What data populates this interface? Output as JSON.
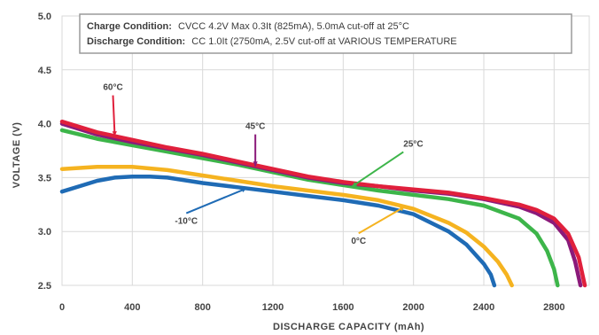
{
  "chart_data": {
    "type": "line",
    "title": "",
    "xlabel": "DISCHARGE CAPACITY (mAh)",
    "ylabel": "VOLTAGE (V)",
    "xlim": [
      0,
      3000
    ],
    "ylim": [
      2.5,
      5.0
    ],
    "x_ticks": [
      "0",
      "400",
      "800",
      "1200",
      "1600",
      "2000",
      "2400",
      "2800"
    ],
    "x_tick_values": [
      0,
      400,
      800,
      1200,
      1600,
      2000,
      2400,
      2800
    ],
    "y_ticks": [
      "2.5",
      "3.0",
      "3.5",
      "4.0",
      "4.5",
      "5.0"
    ],
    "y_tick_values": [
      2.5,
      3.0,
      3.5,
      4.0,
      4.5,
      5.0
    ],
    "grid": true,
    "legend": "labels on series with leader arrows",
    "annotation": {
      "charge_label": "Charge Condition:",
      "charge_text": "CVCC 4.2V Max 0.3It (825mA), 5.0mA cut-off at 25°C",
      "discharge_label": "Discharge Condition:",
      "discharge_text": "CC 1.0It (2750mA, 2.5V cut-off at VARIOUS TEMPERATURE"
    },
    "series": [
      {
        "name": "-10°C",
        "color": "#1f6bb5",
        "x": [
          0,
          100,
          200,
          300,
          400,
          500,
          600,
          800,
          1000,
          1200,
          1400,
          1600,
          1800,
          2000,
          2200,
          2300,
          2400,
          2440,
          2460
        ],
        "y": [
          3.37,
          3.42,
          3.47,
          3.5,
          3.51,
          3.51,
          3.5,
          3.45,
          3.41,
          3.37,
          3.33,
          3.29,
          3.24,
          3.16,
          3.0,
          2.88,
          2.7,
          2.6,
          2.5
        ]
      },
      {
        "name": "0°C",
        "color": "#f5b320",
        "x": [
          0,
          100,
          200,
          400,
          600,
          800,
          1000,
          1200,
          1400,
          1600,
          1800,
          2000,
          2200,
          2300,
          2400,
          2480,
          2530,
          2560
        ],
        "y": [
          3.58,
          3.59,
          3.6,
          3.6,
          3.57,
          3.52,
          3.47,
          3.42,
          3.38,
          3.34,
          3.29,
          3.21,
          3.08,
          2.99,
          2.86,
          2.72,
          2.6,
          2.5
        ]
      },
      {
        "name": "25°C",
        "color": "#3db54a",
        "x": [
          0,
          200,
          400,
          600,
          800,
          1000,
          1200,
          1400,
          1600,
          1800,
          2000,
          2200,
          2400,
          2600,
          2700,
          2760,
          2800,
          2820
        ],
        "y": [
          3.94,
          3.86,
          3.8,
          3.74,
          3.68,
          3.62,
          3.55,
          3.48,
          3.43,
          3.38,
          3.34,
          3.3,
          3.24,
          3.12,
          2.98,
          2.82,
          2.65,
          2.5
        ]
      },
      {
        "name": "45°C",
        "color": "#8b1a7a",
        "x": [
          0,
          200,
          400,
          600,
          800,
          1000,
          1200,
          1400,
          1600,
          1800,
          2000,
          2200,
          2400,
          2600,
          2700,
          2800,
          2880,
          2920,
          2950
        ],
        "y": [
          4.0,
          3.9,
          3.83,
          3.77,
          3.71,
          3.64,
          3.57,
          3.5,
          3.45,
          3.42,
          3.38,
          3.35,
          3.3,
          3.23,
          3.17,
          3.08,
          2.92,
          2.72,
          2.5
        ]
      },
      {
        "name": "60°C",
        "color": "#e0203c",
        "x": [
          0,
          200,
          400,
          600,
          800,
          1000,
          1200,
          1400,
          1600,
          1800,
          2000,
          2200,
          2400,
          2600,
          2700,
          2800,
          2880,
          2940,
          2975
        ],
        "y": [
          4.02,
          3.92,
          3.85,
          3.78,
          3.72,
          3.65,
          3.58,
          3.51,
          3.46,
          3.42,
          3.39,
          3.36,
          3.31,
          3.25,
          3.2,
          3.12,
          2.98,
          2.76,
          2.5
        ]
      }
    ]
  }
}
